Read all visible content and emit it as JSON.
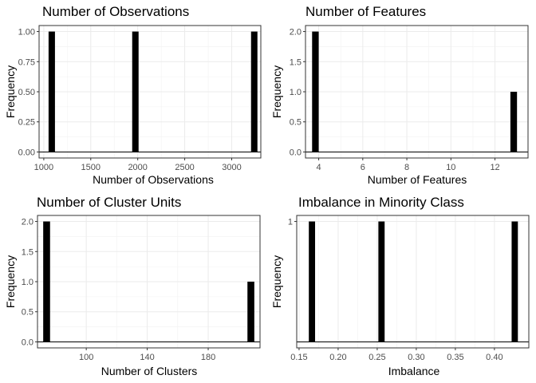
{
  "chart_data": [
    {
      "type": "bar",
      "title": "Number of Observations",
      "xlabel": "Number of Observations",
      "ylabel": "Frequency",
      "xlim": [
        950,
        3310
      ],
      "ylim": [
        -0.05,
        1.05
      ],
      "x_ticks": [
        1000,
        1500,
        2000,
        2500,
        3000
      ],
      "x_tick_labels": [
        "1000",
        "1500",
        "2000",
        "2500",
        "3000"
      ],
      "y_ticks": [
        0,
        0.25,
        0.5,
        0.75,
        1
      ],
      "y_tick_labels": [
        "0.00",
        "0.25",
        "0.50",
        "0.75",
        "1.00"
      ],
      "bar_width": 68,
      "bars": [
        {
          "x": 1085,
          "value": 1
        },
        {
          "x": 1975,
          "value": 1
        },
        {
          "x": 3240,
          "value": 1
        }
      ],
      "grid": true
    },
    {
      "type": "bar",
      "title": "Number of Features",
      "xlabel": "Number of Features",
      "ylabel": "Frequency",
      "xlim": [
        3.4,
        13.5
      ],
      "ylim": [
        -0.1,
        2.1
      ],
      "x_ticks": [
        4,
        6,
        8,
        10,
        12
      ],
      "x_tick_labels": [
        "4",
        "6",
        "8",
        "10",
        "12"
      ],
      "y_ticks": [
        0,
        0.5,
        1,
        1.5,
        2
      ],
      "y_tick_labels": [
        "0.0",
        "0.5",
        "1.0",
        "1.5",
        "2.0"
      ],
      "bar_width": 0.3,
      "bars": [
        {
          "x": 3.85,
          "value": 2
        },
        {
          "x": 12.85,
          "value": 1
        }
      ],
      "grid": true
    },
    {
      "type": "bar",
      "title": "Number of Cluster Units",
      "xlabel": "Number of Clusters",
      "ylabel": "Frequency",
      "xlim": [
        68,
        214
      ],
      "ylim": [
        -0.1,
        2.1
      ],
      "x_ticks": [
        100,
        140,
        180
      ],
      "x_tick_labels": [
        "100",
        "140",
        "180"
      ],
      "y_ticks": [
        0,
        0.5,
        1,
        1.5,
        2
      ],
      "y_tick_labels": [
        "0.0",
        "0.5",
        "1.0",
        "1.5",
        "2.0"
      ],
      "bar_width": 4.5,
      "bars": [
        {
          "x": 74,
          "value": 2
        },
        {
          "x": 208,
          "value": 1
        }
      ],
      "grid": true
    },
    {
      "type": "bar",
      "title": "Imbalance in Minority Class",
      "xlabel": "Imbalance",
      "ylabel": "Frequency",
      "xlim": [
        0.147,
        0.444
      ],
      "ylim": [
        -0.05,
        1.05
      ],
      "x_ticks": [
        0.15,
        0.2,
        0.25,
        0.3,
        0.35,
        0.4
      ],
      "x_tick_labels": [
        "0.15",
        "0.20",
        "0.25",
        "0.30",
        "0.35",
        "0.40"
      ],
      "y_ticks": [
        1
      ],
      "y_tick_labels": [
        "1"
      ],
      "bar_width": 0.008,
      "bars": [
        {
          "x": 0.1665,
          "value": 1
        },
        {
          "x": 0.2555,
          "value": 1
        },
        {
          "x": 0.426,
          "value": 1
        }
      ],
      "grid": true
    }
  ]
}
